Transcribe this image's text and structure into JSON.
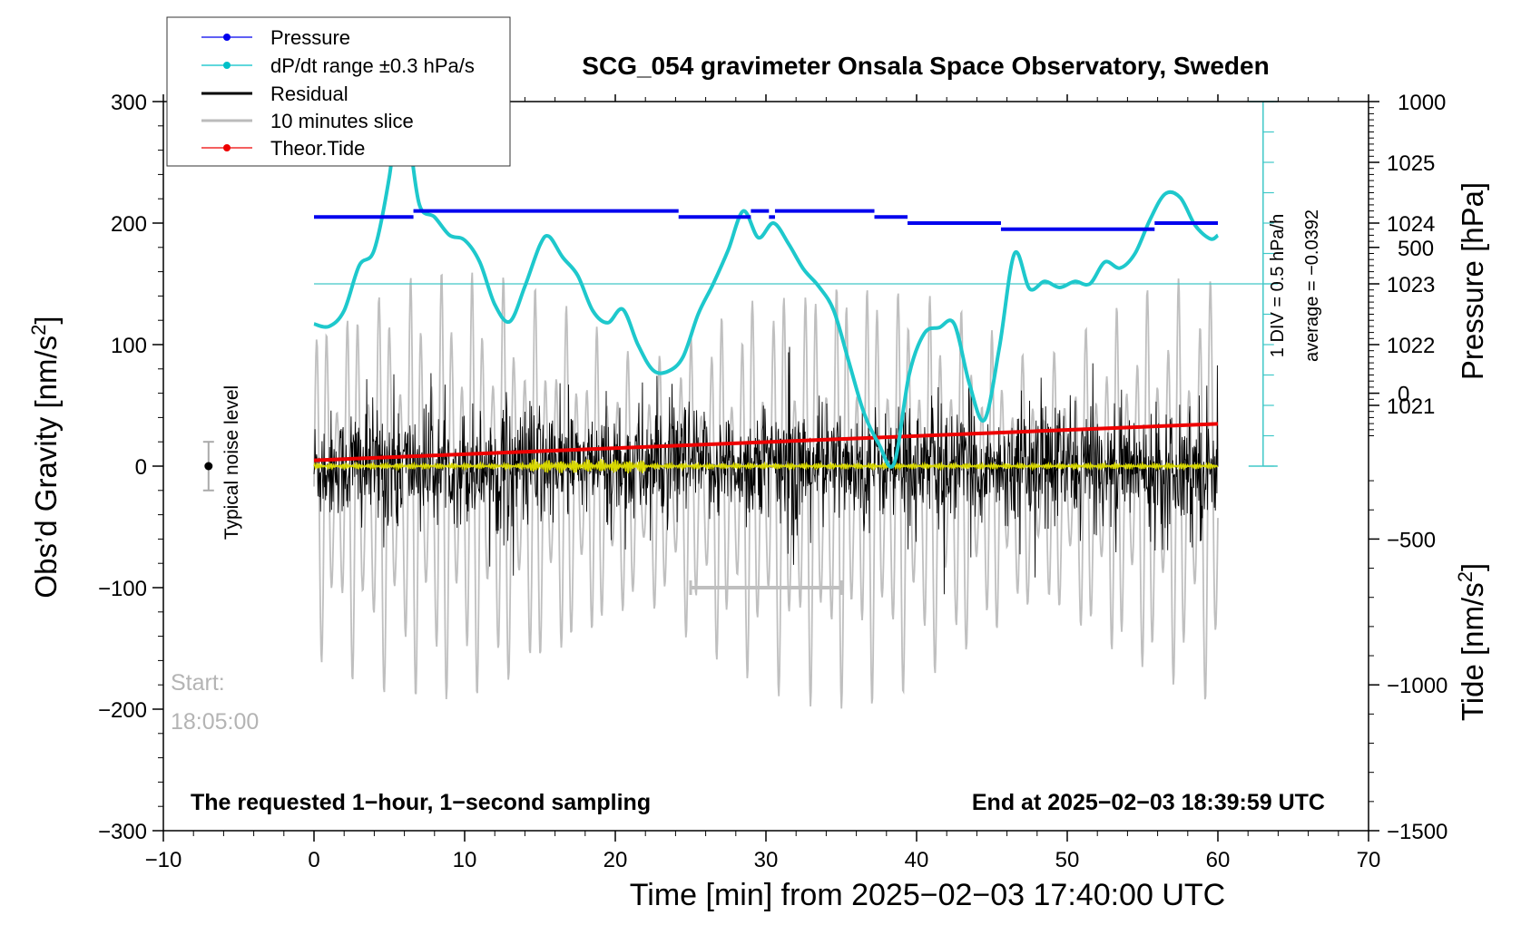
{
  "chart_data": {
    "type": "line",
    "title": "SCG_054 gravimeter Onsala Space Observatory, Sweden",
    "xlabel": "Time [min] from 2025−02−03 17:40:00 UTC",
    "ylabel_left": "Obs’d Gravity [nm/s",
    "ylabel_left_sup": "2",
    "ylabel_left_close": "]",
    "ylabel_pressure": "Pressure [hPa]",
    "ylabel_tide": "Tide [nm/s",
    "ylabel_tide_sup": "2",
    "ylabel_tide_close": "]",
    "xlim": [
      -10,
      70
    ],
    "ylim_gravity": [
      -300,
      300
    ],
    "ylim_tide": [
      -1500,
      1000
    ],
    "x_ticks": [
      {
        "v": -10,
        "label": "−10"
      },
      {
        "v": 0,
        "label": "0"
      },
      {
        "v": 10,
        "label": "10"
      },
      {
        "v": 20,
        "label": "20"
      },
      {
        "v": 30,
        "label": "30"
      },
      {
        "v": 40,
        "label": "40"
      },
      {
        "v": 50,
        "label": "50"
      },
      {
        "v": 60,
        "label": "60"
      },
      {
        "v": 70,
        "label": "70"
      }
    ],
    "y_ticks_left": [
      {
        "v": 300,
        "label": "300"
      },
      {
        "v": 200,
        "label": "200"
      },
      {
        "v": 100,
        "label": "100"
      },
      {
        "v": 0,
        "label": "0"
      },
      {
        "v": -100,
        "label": "−100"
      },
      {
        "v": -200,
        "label": "−200"
      },
      {
        "v": -300,
        "label": "−300"
      }
    ],
    "y_ticks_pressure": [
      {
        "v": 1025,
        "label": "1025"
      },
      {
        "v": 1024,
        "label": "1024"
      },
      {
        "v": 1023,
        "label": "1023"
      },
      {
        "v": 1022,
        "label": "1022"
      },
      {
        "v": 1021,
        "label": "1021"
      }
    ],
    "y_ticks_tide": [
      {
        "v": 1000,
        "label": "1000"
      },
      {
        "v": 500,
        "label": "500"
      },
      {
        "v": 0,
        "label": "0"
      },
      {
        "v": -500,
        "label": "−500"
      },
      {
        "v": -1000,
        "label": "−1000"
      },
      {
        "v": -1500,
        "label": "−1500"
      }
    ],
    "pressure_ref_hpa": 1023,
    "pressure_axis_to_gravity": {
      "p0": 1023,
      "g0": 150,
      "gravity_per_hpa": 50
    },
    "pressure_segments": [
      {
        "x0": 0,
        "x1": 6.6,
        "p": 1024.1
      },
      {
        "x0": 6.6,
        "x1": 24.2,
        "p": 1024.2
      },
      {
        "x0": 24.2,
        "x1": 29.0,
        "p": 1024.1
      },
      {
        "x0": 29.0,
        "x1": 30.2,
        "p": 1024.2
      },
      {
        "x0": 30.2,
        "x1": 30.6,
        "p": 1024.1
      },
      {
        "x0": 30.6,
        "x1": 37.2,
        "p": 1024.2
      },
      {
        "x0": 37.2,
        "x1": 39.4,
        "p": 1024.1
      },
      {
        "x0": 39.4,
        "x1": 45.6,
        "p": 1024.0
      },
      {
        "x0": 45.6,
        "x1": 55.8,
        "p": 1023.9
      },
      {
        "x0": 55.8,
        "x1": 60.0,
        "p": 1024.0
      }
    ],
    "dpdt_curve": {
      "name": "dP/dt range ±0.3 hPa/s",
      "x": [
        0,
        1,
        2,
        3,
        4,
        5,
        5.7,
        6.3,
        7,
        8,
        9,
        10,
        11,
        12,
        13,
        14,
        15,
        15.6,
        16.5,
        17.5,
        18.5,
        19.5,
        20.5,
        21.5,
        22.5,
        23.5,
        24.5,
        25.5,
        26.5,
        27.5,
        28.5,
        29.5,
        30.5,
        31.5,
        32.5,
        33.5,
        34.5,
        35.5,
        36.5,
        37.5,
        38.5,
        39.5,
        40.5,
        41.5,
        42.5,
        43.5,
        44.5,
        45.5,
        46.5,
        47.5,
        48.5,
        49.5,
        50.5,
        51.5,
        52.5,
        53.5,
        54.5,
        55.5,
        56.5,
        57.5,
        58.5,
        59.5,
        60
      ],
      "y": [
        117,
        115,
        128,
        165,
        178,
        238,
        305,
        272,
        215,
        205,
        190,
        186,
        168,
        133,
        119,
        148,
        182,
        189,
        172,
        157,
        128,
        118,
        129,
        100,
        79,
        78,
        90,
        125,
        150,
        178,
        210,
        188,
        200,
        183,
        162,
        148,
        128,
        86,
        44,
        18,
        2,
        75,
        109,
        114,
        117,
        68,
        38,
        98,
        175,
        146,
        152,
        147,
        152,
        150,
        168,
        163,
        175,
        203,
        224,
        221,
        198,
        187,
        190
      ]
    },
    "dpdt_scale": {
      "line1": "1 DIV = 0.5 hPa/h",
      "line2": "average = −0.0392"
    },
    "residual": {
      "name": "Residual",
      "amplitude_nm_s2": 60
    },
    "tide_slice": {
      "name": "10 minutes slice",
      "amplitude_nm_s2": 900
    },
    "theor_tide": {
      "name": "Theor.Tide",
      "start_nm_s2": -230,
      "end_nm_s2": -105
    },
    "slice_marker": {
      "x0": 25,
      "x1": 35,
      "y": -100
    },
    "noise_level": {
      "label": "Typical noise level",
      "x": -7,
      "center": 0,
      "half_range": 20
    },
    "legend": [
      {
        "label": "Pressure",
        "color": "#0000ee"
      },
      {
        "label": "dP/dt range ±0.3 hPa/s",
        "color": "#00c0c8"
      },
      {
        "label": "Residual",
        "color": "#000000"
      },
      {
        "label": "10 minutes slice",
        "color": "#bbbbbb"
      },
      {
        "label": "Theor.Tide",
        "color": "#ee0000"
      }
    ],
    "start_label_1": "Start:",
    "start_label_2": "18:05:00",
    "footer_left": "The requested 1−hour, 1−second sampling",
    "footer_right": "End at 2025−02−03 18:39:59 UTC",
    "colors": {
      "pressure": "#0000ee",
      "dpdt": "#1ec8cc",
      "residual": "#000000",
      "slice": "#bfbfbf",
      "tide": "#ee0000",
      "filtered": "#d8d800",
      "axis_cyan": "#40c8c8"
    }
  }
}
